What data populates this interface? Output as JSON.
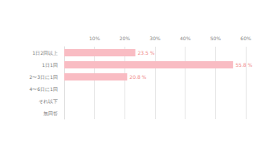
{
  "chart_data": {
    "type": "bar",
    "orientation": "horizontal",
    "categories": [
      "1日2回以上",
      "1日1回",
      "2〜3日に1回",
      "4〜6日に1回",
      "それ以下",
      "無回答"
    ],
    "values": [
      23.5,
      55.8,
      20.8,
      null,
      null,
      null
    ],
    "value_labels": [
      "23.5 %",
      "55.8 %",
      "20.8 %",
      null,
      null,
      null
    ],
    "color": "#f9bcc3",
    "xlim": [
      0,
      60
    ],
    "xticks": [
      {
        "value": 10,
        "label": "10%"
      },
      {
        "value": 20,
        "label": "20%"
      },
      {
        "value": 30,
        "label": "30%"
      },
      {
        "value": 40,
        "label": "40%"
      },
      {
        "value": 50,
        "label": "50%"
      },
      {
        "value": 60,
        "label": "60%"
      }
    ],
    "grid": true,
    "data_labels": true
  }
}
